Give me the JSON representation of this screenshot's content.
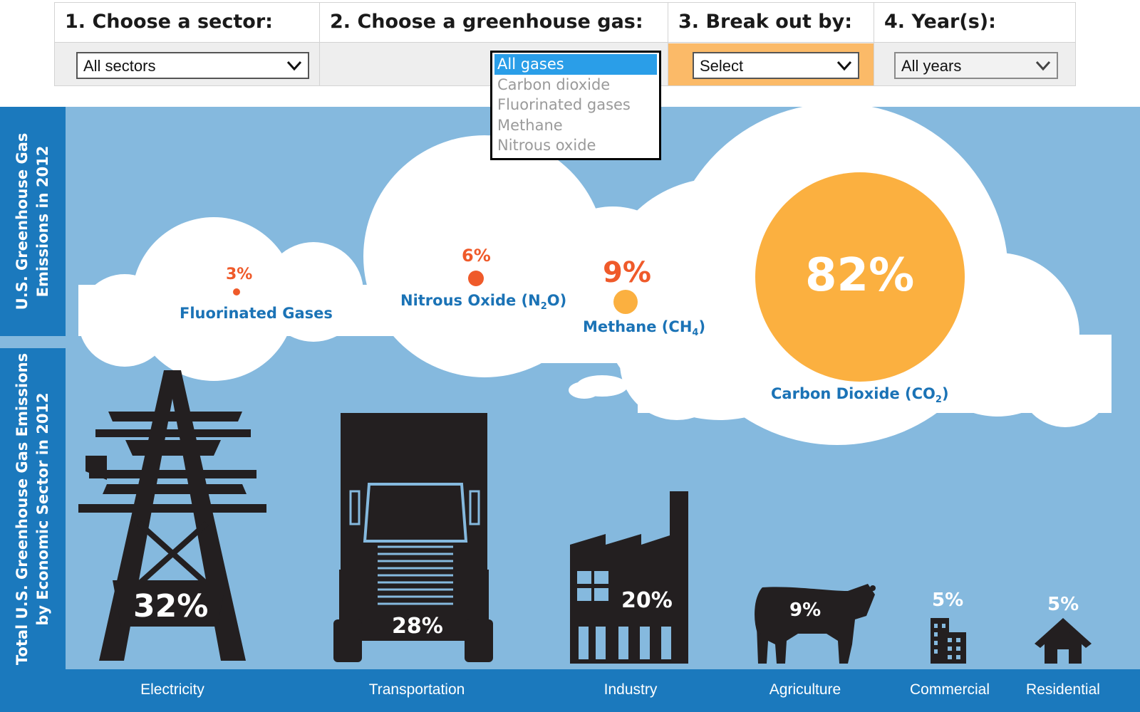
{
  "filters": [
    {
      "heading": "1. Choose a sector:",
      "value": "All sectors"
    },
    {
      "heading": "2. Choose a greenhouse gas:",
      "value": "All gases"
    },
    {
      "heading": "3. Break out by:",
      "value": "Select"
    },
    {
      "heading": "4. Year(s):",
      "value": "All years"
    }
  ],
  "gas_dropdown": {
    "options": [
      "All gases",
      "Carbon dioxide",
      "Fluorinated gases",
      "Methane",
      "Nitrous oxide"
    ],
    "selected": "All gases"
  },
  "side_labels": {
    "top_line1": "U.S. Greenhouse Gas",
    "top_line2": "Emissions in 2012",
    "bottom_line1": "Total U.S. Greenhouse Gas Emissions",
    "bottom_line2": "by Economic Sector in 2012"
  },
  "gases": [
    {
      "pct": "3%",
      "name": "Fluorinated Gases",
      "sub": "",
      "close": ""
    },
    {
      "pct": "6%",
      "name": "Nitrous Oxide (N",
      "sub": "2",
      "close": "O)"
    },
    {
      "pct": "9%",
      "name": "Methane (CH",
      "sub": "4",
      "close": ")"
    },
    {
      "pct": "82%",
      "name": "Carbon Dioxide (CO",
      "sub": "2",
      "close": ")"
    }
  ],
  "sectors": [
    {
      "name": "Electricity",
      "pct": "32%"
    },
    {
      "name": "Transportation",
      "pct": "28%"
    },
    {
      "name": "Industry",
      "pct": "20%"
    },
    {
      "name": "Agriculture",
      "pct": "9%"
    },
    {
      "name": "Commercial",
      "pct": "5%"
    },
    {
      "name": "Residential",
      "pct": "5%"
    }
  ],
  "colors": {
    "sky": "#85b9de",
    "navy": "#1b79bd",
    "orange": "#fbb040",
    "red": "#ef5a2a",
    "label_blue": "#1b73b6",
    "icon": "#231f20"
  }
}
